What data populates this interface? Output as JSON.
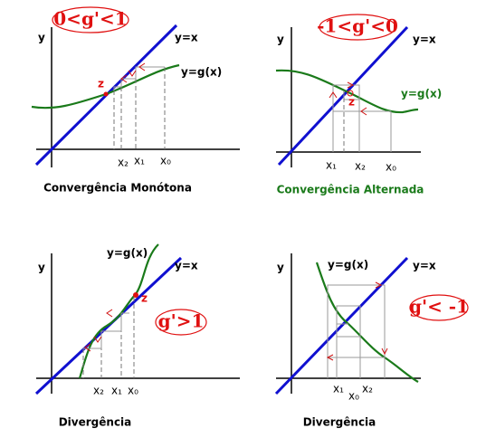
{
  "panels": [
    {
      "title": "0<g'<1",
      "y_label": "y",
      "line_label": "y=x",
      "curve_label": "y=g(x)",
      "fixed_point_label": "z",
      "x_labels": [
        "x₂",
        "x₁",
        "x₀"
      ],
      "caption": "Convergência Monótona"
    },
    {
      "title": "-1<g'<0",
      "y_label": "y",
      "line_label": "y=x",
      "curve_label": "y=g(x)",
      "fixed_point_label": "z",
      "x_labels": [
        "x₁",
        "x₂",
        "x₀"
      ],
      "caption": "Convergência Alternada"
    },
    {
      "title": "g'>1",
      "y_label": "y",
      "line_label": "y=x",
      "curve_label": "y=g(x)",
      "fixed_point_label": "z",
      "x_labels": [
        "x₂",
        "x₁",
        "x₀"
      ],
      "caption": "Divergência"
    },
    {
      "title": "g'< -1",
      "y_label": "y",
      "line_label": "y=x",
      "curve_label": "y=g(x)",
      "x_labels": [
        "x₁",
        "x₀",
        "x₂"
      ],
      "caption": "Divergência"
    }
  ]
}
